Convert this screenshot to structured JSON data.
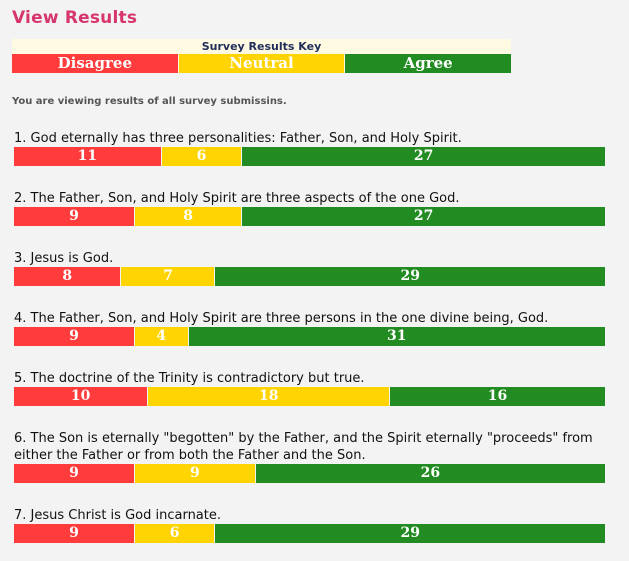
{
  "page_title": "View Results",
  "key": {
    "title": "Survey Results Key",
    "items": [
      {
        "label": "Disagree",
        "color": "#ff3b3b"
      },
      {
        "label": "Neutral",
        "color": "#ffd400"
      },
      {
        "label": "Agree",
        "color": "#228b22"
      }
    ]
  },
  "note": "You are viewing results of all survey submissins.",
  "colors": {
    "disagree": "#ff3b3b",
    "neutral": "#ffd400",
    "agree": "#228b22"
  },
  "questions": [
    {
      "text": "1. God eternally has three personalities: Father, Son, and Holy Spirit.",
      "disagree": 11,
      "neutral": 6,
      "agree": 27
    },
    {
      "text": "2. The Father, Son, and Holy Spirit are three aspects of the one God.",
      "disagree": 9,
      "neutral": 8,
      "agree": 27
    },
    {
      "text": "3. Jesus is God.",
      "disagree": 8,
      "neutral": 7,
      "agree": 29
    },
    {
      "text": "4. The Father, Son, and Holy Spirit are three persons in the one divine being, God.",
      "disagree": 9,
      "neutral": 4,
      "agree": 31
    },
    {
      "text": "5. The doctrine of the Trinity is contradictory but true.",
      "disagree": 10,
      "neutral": 18,
      "agree": 16
    },
    {
      "text": "6. The Son is eternally \"begotten\" by the Father, and the Spirit eternally \"proceeds\" from either the Father or from both the Father and the Son.",
      "disagree": 9,
      "neutral": 9,
      "agree": 26
    },
    {
      "text": "7. Jesus Christ is God incarnate.",
      "disagree": 9,
      "neutral": 6,
      "agree": 29
    }
  ]
}
